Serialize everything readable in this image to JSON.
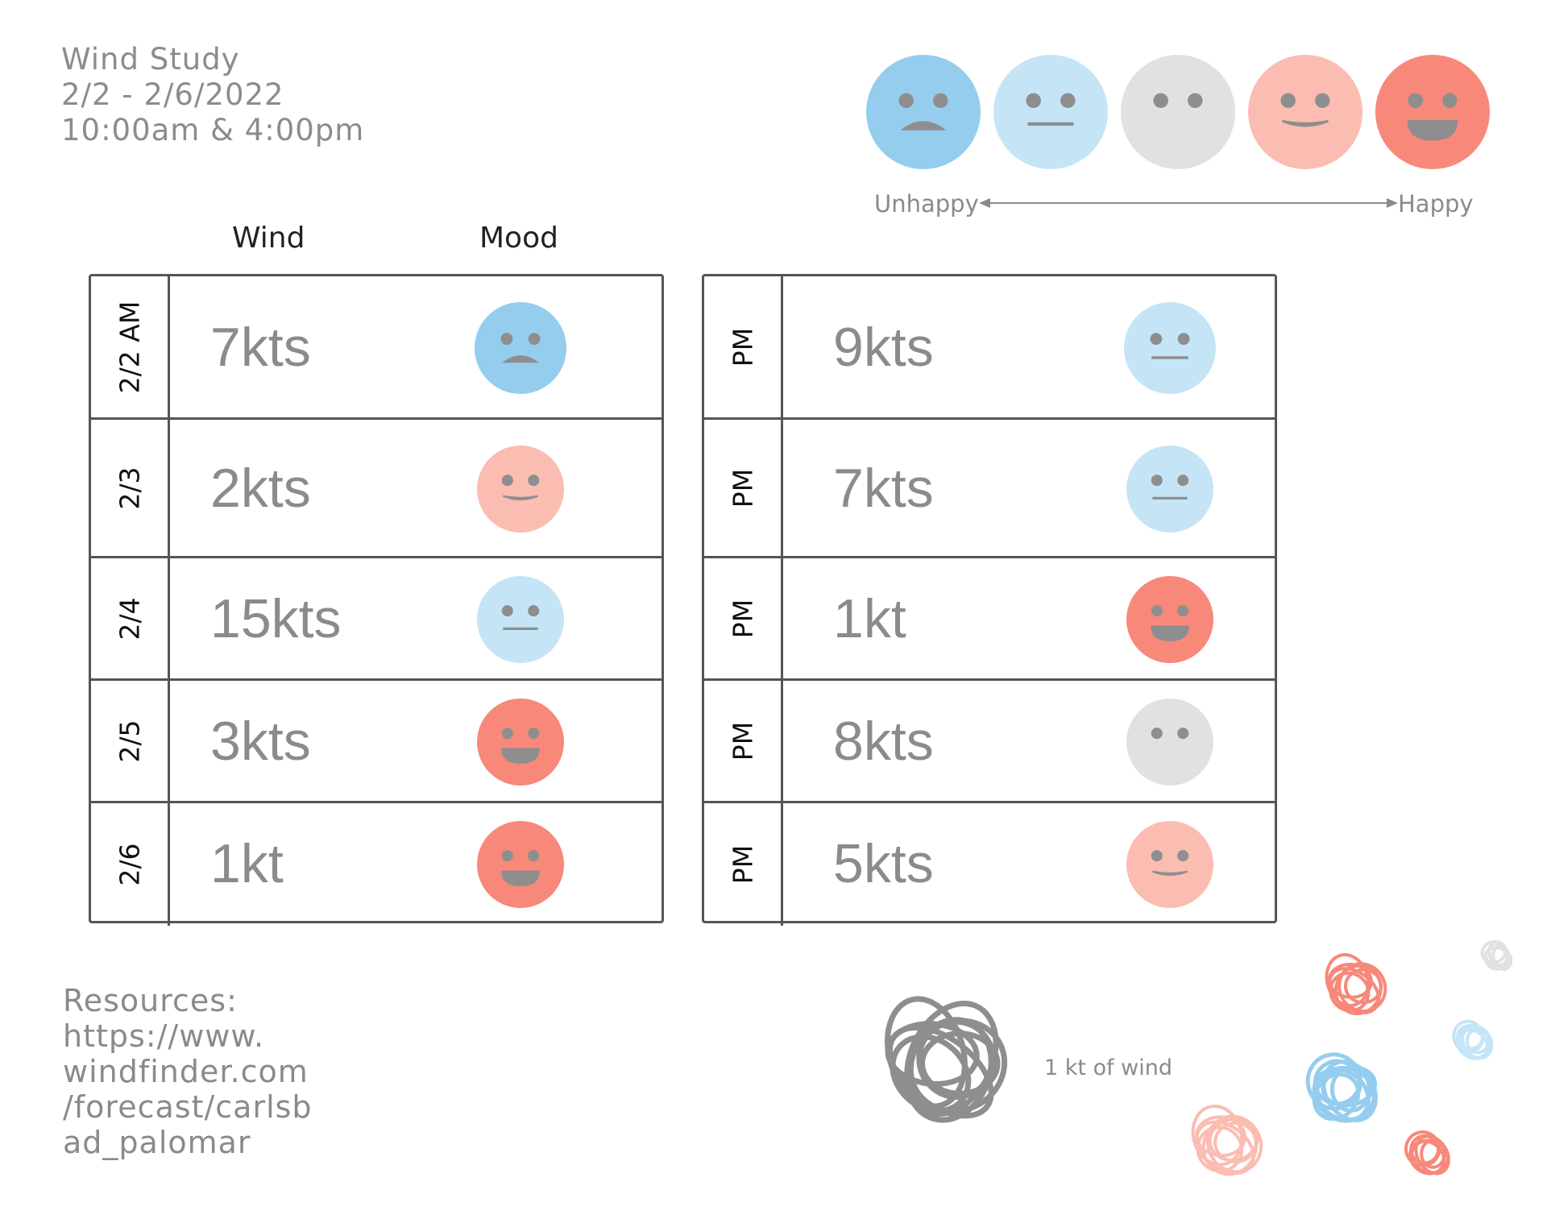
{
  "header": {
    "title": "Wind Study",
    "dates": "2/2 - 2/6/2022",
    "times": "10:00am & 4:00pm"
  },
  "legend": {
    "unhappy_label": "Unhappy",
    "happy_label": "Happy",
    "scale": [
      "sad",
      "neutral",
      "blank",
      "content",
      "happy"
    ]
  },
  "mood_colors": {
    "sad": "#95cdee",
    "neutral": "#c5e5f6",
    "blank": "#e1e1e1",
    "content": "#fbbcb2",
    "happy": "#f7887a",
    "feature": "#8e8e8e"
  },
  "columns": {
    "wind": "Wind",
    "mood": "Mood"
  },
  "am_rows": [
    {
      "label": "2/2 AM",
      "wind": "7kts",
      "mood": "sad"
    },
    {
      "label": "2/3",
      "wind": "2kts",
      "mood": "content"
    },
    {
      "label": "2/4",
      "wind": "15kts",
      "mood": "neutral"
    },
    {
      "label": "2/5",
      "wind": "3kts",
      "mood": "happy"
    },
    {
      "label": "2/6",
      "wind": "1kt",
      "mood": "happy"
    }
  ],
  "pm_rows": [
    {
      "label": "PM",
      "wind": "9kts",
      "mood": "neutral"
    },
    {
      "label": "PM",
      "wind": "7kts",
      "mood": "neutral"
    },
    {
      "label": "PM",
      "wind": "1kt",
      "mood": "happy"
    },
    {
      "label": "PM",
      "wind": "8kts",
      "mood": "blank"
    },
    {
      "label": "PM",
      "wind": "5kts",
      "mood": "content"
    }
  ],
  "resources": {
    "heading": "Resources:",
    "lines": [
      "https://www.",
      "windfinder.com",
      "/forecast/carlsb",
      "ad_palomar"
    ]
  },
  "scribble_legend": {
    "label": "1 kt of wind",
    "key_color": "#8e8e8e"
  }
}
